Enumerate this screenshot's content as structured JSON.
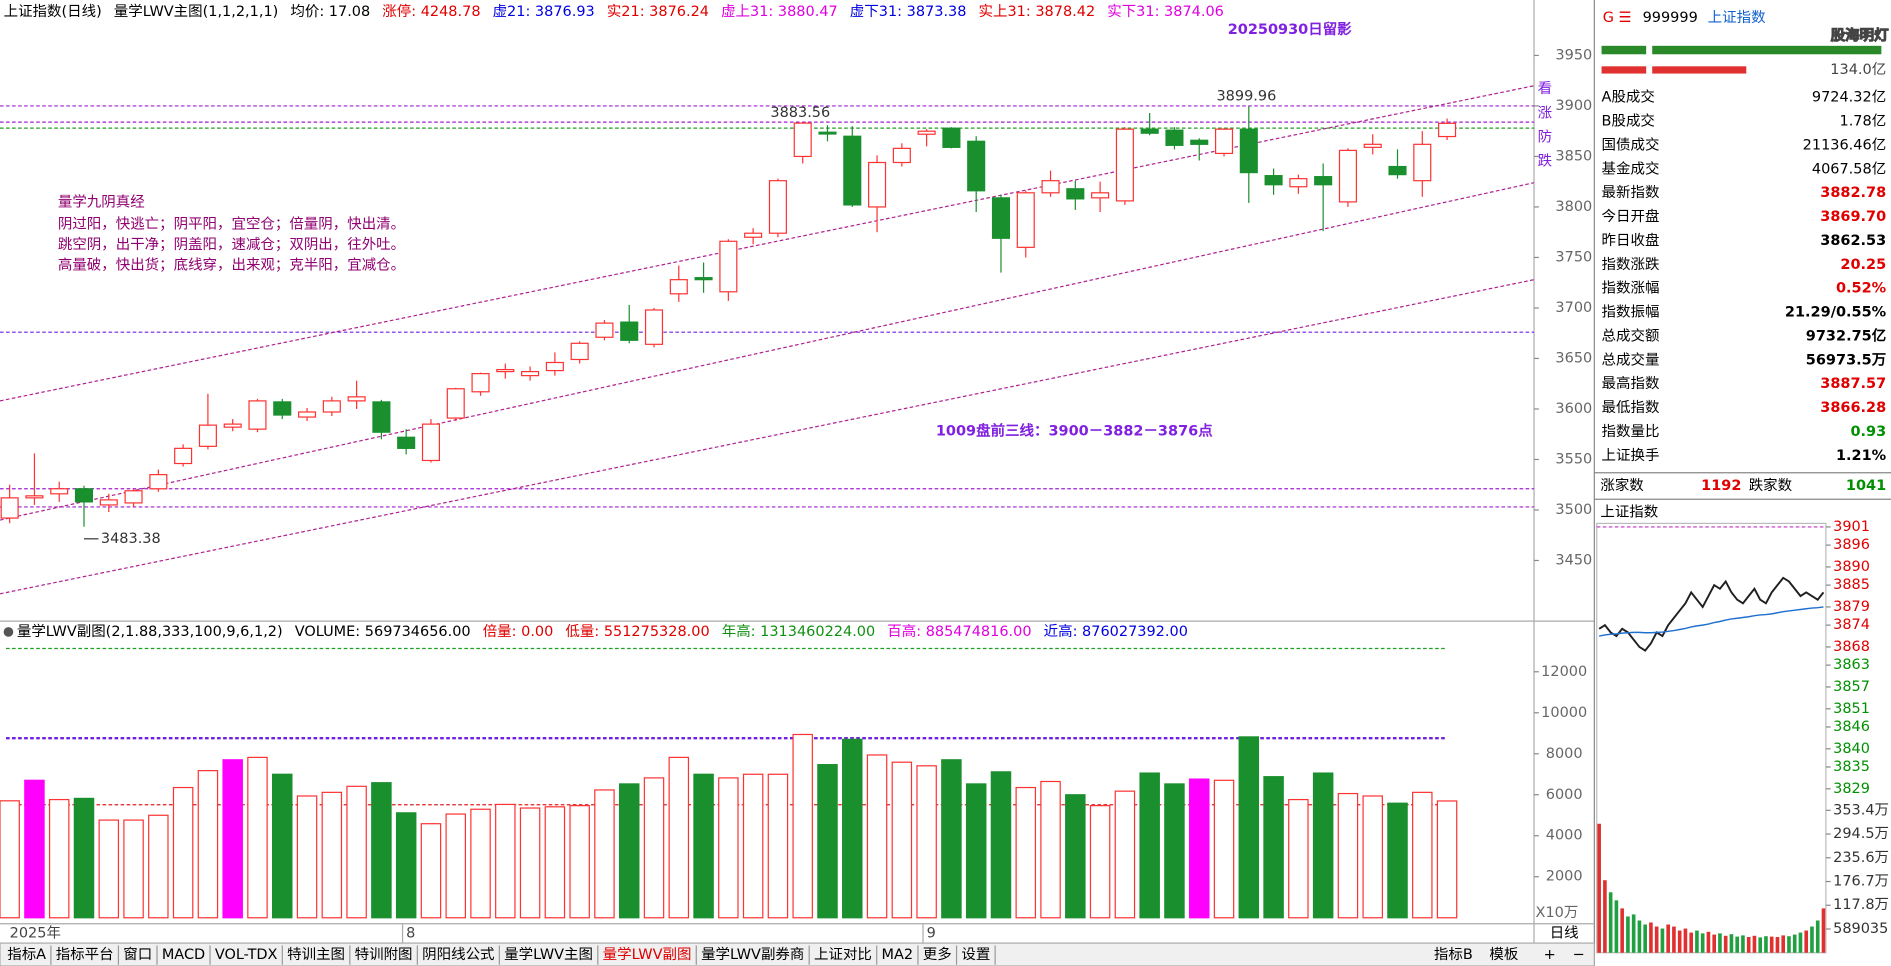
{
  "header": {
    "items": [
      {
        "text": "上证指数(日线)",
        "color": "#000000"
      },
      {
        "text": "量学LWV主图(1,1,2,1,1)",
        "color": "#000000"
      },
      {
        "text": "均价: 17.08",
        "color": "#000000"
      },
      {
        "text": "涨停: 4248.78",
        "color": "#e00000"
      },
      {
        "text": "虚21: 3876.93",
        "color": "#0000e0"
      },
      {
        "text": "实21: 3876.24",
        "color": "#e00000"
      },
      {
        "text": "虚上31: 3880.47",
        "color": "#e000e0"
      },
      {
        "text": "虚下31: 3873.38",
        "color": "#0000e0"
      },
      {
        "text": "实上31: 3878.42",
        "color": "#e00000"
      },
      {
        "text": "实下31: 3874.06",
        "color": "#e000e0"
      }
    ]
  },
  "chart_data": [
    {
      "type": "candlestick",
      "categories": [
        "2025年",
        null,
        null,
        null,
        null,
        null,
        null,
        null,
        null,
        null,
        null,
        null,
        null,
        null,
        null,
        null,
        "8",
        null,
        null,
        null,
        null,
        null,
        null,
        null,
        null,
        null,
        null,
        null,
        null,
        null,
        null,
        null,
        null,
        null,
        null,
        null,
        null,
        "9",
        null,
        null,
        null,
        null,
        null,
        null,
        null,
        null,
        null,
        null,
        null,
        null,
        null,
        null,
        null,
        null,
        null,
        null,
        null,
        null,
        null
      ],
      "open": [
        3492,
        3512,
        3516,
        3521,
        3505,
        3507,
        3521,
        3546,
        3563,
        3582,
        3580,
        3607,
        3592,
        3597,
        3608,
        3607,
        3572,
        3549,
        3591,
        3617,
        3637,
        3633,
        3638,
        3649,
        3671,
        3686,
        3664,
        3714,
        3730,
        3716,
        3770,
        3774,
        3850,
        3874,
        3870,
        3800,
        3844,
        3872,
        3878,
        3865,
        3809,
        3760,
        3814,
        3818,
        3809,
        3806,
        3877,
        3876,
        3866,
        3853,
        3877,
        3831,
        3820,
        3830,
        3805,
        3859,
        3840,
        3826,
        3869.7
      ],
      "high": [
        3525,
        3556,
        3528,
        3524,
        3516,
        3521,
        3540,
        3565,
        3615,
        3590,
        3610,
        3610,
        3601,
        3612,
        3628,
        3609,
        3580,
        3590,
        3621,
        3636,
        3645,
        3642,
        3656,
        3667,
        3688,
        3703,
        3700,
        3742,
        3745,
        3768,
        3779,
        3828,
        3883.56,
        3881,
        3880,
        3851,
        3863,
        3877,
        3879,
        3870,
        3812,
        3816,
        3836,
        3826,
        3825,
        3879,
        3893,
        3879,
        3868,
        3878,
        3899.96,
        3838,
        3832,
        3843,
        3858,
        3872,
        3857,
        3875,
        3887.57
      ],
      "low": [
        3487,
        3505,
        3508,
        3483.38,
        3498,
        3503,
        3518,
        3543,
        3560,
        3578,
        3577,
        3590,
        3588,
        3593,
        3600,
        3570,
        3555,
        3547,
        3588,
        3613,
        3630,
        3628,
        3633,
        3645,
        3668,
        3665,
        3661,
        3706,
        3715,
        3707,
        3763,
        3770,
        3843,
        3865,
        3800,
        3775,
        3840,
        3860,
        3858,
        3795,
        3735,
        3750,
        3810,
        3797,
        3795,
        3802,
        3871,
        3857,
        3846,
        3850,
        3804,
        3812,
        3813,
        3776,
        3800,
        3852,
        3828,
        3810,
        3866.28
      ],
      "close": [
        3512,
        3514,
        3521,
        3508,
        3510,
        3519,
        3535,
        3561,
        3584,
        3585,
        3608,
        3594,
        3597,
        3608,
        3612,
        3577,
        3561,
        3585,
        3620,
        3635,
        3639,
        3637,
        3646,
        3665,
        3685,
        3668,
        3698,
        3728,
        3728,
        3766,
        3774,
        3826,
        3883,
        3873,
        3802,
        3844,
        3858,
        3875,
        3859,
        3816,
        3769,
        3814,
        3826,
        3808,
        3814,
        3877,
        3873,
        3861,
        3862,
        3877,
        3834,
        3822,
        3828,
        3822,
        3856,
        3862,
        3832,
        3862,
        3882.78
      ],
      "colors": {
        "up": "#ff3232",
        "down": "#1a8f2e"
      },
      "ylim": [
        3390,
        3981
      ],
      "yticks": [
        3450,
        3500,
        3550,
        3600,
        3650,
        3700,
        3750,
        3800,
        3850,
        3900,
        3950
      ],
      "hlines": [
        {
          "value": 3900,
          "color": "#a020d0"
        },
        {
          "value": 3884,
          "color": "#a020d0"
        },
        {
          "value": 3878,
          "color": "#20a020"
        },
        {
          "value": 3676,
          "color": "#7020e0"
        },
        {
          "value": 3521,
          "color": "#a020d0"
        },
        {
          "value": 3503,
          "color": "#a020d0"
        }
      ],
      "trendlines": [
        {
          "start": 3608,
          "end": 3920,
          "color": "#b02090"
        },
        {
          "start": 3490,
          "end": 3824,
          "color": "#b02090"
        },
        {
          "start": 3417,
          "end": 3728,
          "color": "#b02090"
        }
      ],
      "extreme_labels": [
        3883.56,
        3899.96,
        3483.38
      ],
      "title": "20250930日留影",
      "side_note": "看涨防跌",
      "notes": {
        "title": "量学九阴真经",
        "lines": [
          "阴过阳，快逃亡；阴平阳，宜空仓；倍量阴，快出清。",
          "跳空阴，出干净；阴盖阳，速减仓；双阴出，往外吐。",
          "高量破，快出货；底线穿，出来观；克半阳，宜减仓。"
        ]
      },
      "headline": "1009盘前三线：3900－3882－3876点"
    },
    {
      "type": "bar",
      "header": [
        {
          "text": "量学LWV副图(2,1.88,333,100,9,6,1,2)",
          "color": "#000000"
        },
        {
          "text": "VOLUME: 569734656.00",
          "color": "#000000"
        },
        {
          "text": "倍量: 0.00",
          "color": "#e00000"
        },
        {
          "text": "低量: 551275328.00",
          "color": "#e00000"
        },
        {
          "text": "年高: 1313460224.00",
          "color": "#109010"
        },
        {
          "text": "百高: 885474816.00",
          "color": "#e000e0"
        },
        {
          "text": "近高: 876027392.00",
          "color": "#0000e0"
        }
      ],
      "values": [
        5705,
        6706,
        5765,
        5823,
        4765,
        4765,
        5000,
        6353,
        7176,
        7706,
        7823,
        7000,
        5941,
        6118,
        6412,
        6588,
        5118,
        4588,
        5059,
        5294,
        5529,
        5353,
        5412,
        5470,
        6235,
        6529,
        6823,
        7823,
        7000,
        6823,
        7000,
        7000,
        8941,
        7470,
        8705,
        7941,
        7588,
        7412,
        7706,
        6529,
        7117,
        6353,
        6647,
        6000,
        5470,
        6176,
        7058,
        6529,
        6764,
        6706,
        8823,
        6882,
        5765,
        7058,
        6059,
        5941,
        5588,
        6118,
        5697.35
      ],
      "colors": [
        "#ff3232",
        "#ff00ff",
        "#ff3232",
        "#1a8f2e",
        "#ff3232",
        "#ff3232",
        "#ff3232",
        "#ff3232",
        "#ff3232",
        "#ff00ff",
        "#ff3232",
        "#1a8f2e",
        "#ff3232",
        "#ff3232",
        "#ff3232",
        "#1a8f2e",
        "#1a8f2e",
        "#ff3232",
        "#ff3232",
        "#ff3232",
        "#ff3232",
        "#ff3232",
        "#ff3232",
        "#ff3232",
        "#ff3232",
        "#1a8f2e",
        "#ff3232",
        "#ff3232",
        "#1a8f2e",
        "#ff3232",
        "#ff3232",
        "#ff3232",
        "#ff3232",
        "#1a8f2e",
        "#1a8f2e",
        "#ff3232",
        "#ff3232",
        "#ff3232",
        "#1a8f2e",
        "#1a8f2e",
        "#1a8f2e",
        "#ff3232",
        "#ff3232",
        "#1a8f2e",
        "#ff3232",
        "#ff3232",
        "#1a8f2e",
        "#1a8f2e",
        "#ff00ff",
        "#ff3232",
        "#1a8f2e",
        "#1a8f2e",
        "#ff3232",
        "#1a8f2e",
        "#ff3232",
        "#ff3232",
        "#1a8f2e",
        "#ff3232",
        "#ff3232"
      ],
      "ylim": [
        0,
        13590
      ],
      "yticks": [
        2000,
        4000,
        6000,
        8000,
        10000,
        12000
      ],
      "unit_label": "X10万",
      "hlines": [
        {
          "value": 13134.6,
          "color": "#20a020"
        },
        {
          "value": 8760.3,
          "color": "#7020e0"
        },
        {
          "value": 5512.75,
          "color": "#e02020"
        }
      ]
    },
    {
      "type": "line",
      "title": "上证指数",
      "series": [
        {
          "color": "#202020",
          "values": [
            3873,
            3874,
            3872,
            3871,
            3873,
            3872,
            3870,
            3868,
            3867,
            3869,
            3872,
            3871,
            3874,
            3876,
            3878,
            3880,
            3883,
            3881,
            3879,
            3882,
            3885,
            3884,
            3886,
            3883,
            3881,
            3880,
            3882,
            3884,
            3881,
            3880,
            3883,
            3885,
            3887,
            3886,
            3884,
            3882,
            3883,
            3882,
            3881,
            3883
          ]
        },
        {
          "color": "#2070d0",
          "values": [
            3871,
            3871.3,
            3871.5,
            3871.6,
            3871.8,
            3871.9,
            3872,
            3872,
            3871.9,
            3871.9,
            3872,
            3872.1,
            3872.3,
            3872.5,
            3872.8,
            3873.1,
            3873.5,
            3873.8,
            3874,
            3874.3,
            3874.7,
            3875,
            3875.4,
            3875.7,
            3875.9,
            3876.1,
            3876.3,
            3876.6,
            3876.8,
            3876.9,
            3877.1,
            3877.4,
            3877.7,
            3877.9,
            3878.1,
            3878.3,
            3878.5,
            3878.7,
            3878.8,
            3879
          ]
        }
      ],
      "ylim": [
        3827.7,
        3902.3
      ],
      "yticks": [
        3901,
        3896,
        3890,
        3885,
        3879,
        3874,
        3868,
        3863,
        3857,
        3851,
        3846,
        3840,
        3835,
        3829
      ]
    },
    {
      "type": "bar",
      "values": [
        3200000,
        1800000,
        1500000,
        1300000,
        1100000,
        900000,
        950000,
        800000,
        700000,
        750000,
        650000,
        600000,
        700000,
        650000,
        550000,
        600000,
        500000,
        550000,
        480000,
        520000,
        450000,
        480000,
        420000,
        460000,
        400000,
        430000,
        390000,
        420000,
        380000,
        410000,
        400000,
        390000,
        430000,
        410000,
        450000,
        500000,
        550000,
        650000,
        800000,
        1100000
      ],
      "colors": {
        "up": "#e03030",
        "down": "#20a040"
      },
      "ylim": [
        0,
        3890000
      ],
      "yticks": [
        {
          "value": 3534000,
          "label": "353.4万"
        },
        {
          "value": 2945000,
          "label": "294.5万"
        },
        {
          "value": 2356000,
          "label": "235.6万"
        },
        {
          "value": 1767000,
          "label": "176.7万"
        },
        {
          "value": 1178000,
          "label": "117.8万"
        },
        589035
      ]
    }
  ],
  "panel": {
    "code": "999999",
    "name": "上证指数",
    "watermark": "股海明灯",
    "bar_label": "134.0亿",
    "rows": [
      {
        "label": "A股成交",
        "value": "9724.32亿",
        "color": "#000000"
      },
      {
        "label": "B股成交",
        "value": "1.78亿",
        "color": "#000000"
      },
      {
        "label": "国债成交",
        "value": "21136.46亿",
        "color": "#000000"
      },
      {
        "label": "基金成交",
        "value": "4067.58亿",
        "color": "#000000"
      },
      {
        "label": "最新指数",
        "value": "3882.78",
        "color": "#e00000"
      },
      {
        "label": "今日开盘",
        "value": "3869.70",
        "color": "#e00000"
      },
      {
        "label": "昨日收盘",
        "value": "3862.53",
        "color": "#000000"
      },
      {
        "label": "指数涨跌",
        "value": "20.25",
        "color": "#e00000"
      },
      {
        "label": "指数涨幅",
        "value": "0.52%",
        "color": "#e00000"
      },
      {
        "label": "指数振幅",
        "value": "21.29/0.55%",
        "color": "#000000"
      },
      {
        "label": "总成交额",
        "value": "9732.75亿",
        "color": "#000000"
      },
      {
        "label": "总成交量",
        "value": "56973.5万",
        "color": "#000000"
      },
      {
        "label": "最高指数",
        "value": "3887.57",
        "color": "#e00000"
      },
      {
        "label": "最低指数",
        "value": "3866.28",
        "color": "#e00000"
      },
      {
        "label": "指数量比",
        "value": "0.93",
        "color": "#009000"
      },
      {
        "label": "上证换手",
        "value": "1.21%",
        "color": "#000000"
      }
    ],
    "breadth": {
      "up_label": "涨家数",
      "up": "1192",
      "down_label": "跌家数",
      "down": "1041"
    }
  },
  "tabs": {
    "items": [
      "指标A",
      "指标平台",
      "窗口",
      "MACD",
      "VOL-TDX",
      "特训主图",
      "特训附图",
      "阴阳线公式",
      "量学LWV主图",
      "量学LWV副图",
      "量学LWV副券商",
      "上证对比",
      "MA2",
      "更多",
      "设置"
    ],
    "active": 9,
    "right": [
      "指标B",
      "模板"
    ],
    "period": "日线"
  }
}
